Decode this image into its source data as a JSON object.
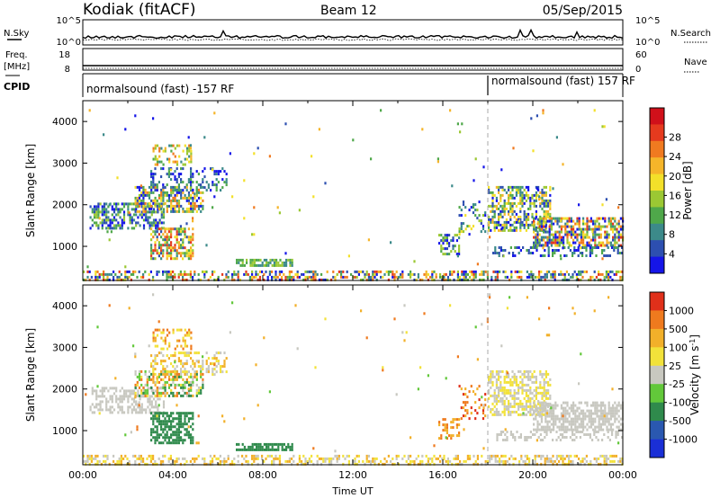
{
  "header": {
    "radar": "Kodiak (fitACF)",
    "beam": "Beam 12",
    "date": "05/Sep/2015"
  },
  "strip_panels": {
    "noise": {
      "left_label": "N.Sky",
      "right_label": "N.Search",
      "left_ticks": [
        "10^5",
        "10^0"
      ],
      "right_ticks": [
        "10^5",
        "10^0"
      ]
    },
    "freq": {
      "left_label_1": "Freq.",
      "left_label_2": "[MHz]",
      "right_label": "Nave",
      "left_ticks": [
        "18",
        "8"
      ],
      "right_ticks": [
        "60",
        "0"
      ]
    },
    "cpid": {
      "label": "CPID",
      "segments": [
        {
          "start_hour": 0,
          "text": "normalsound (fast) -157 RF"
        },
        {
          "start_hour": 18,
          "text": "normalsound (fast) 157 RF"
        }
      ]
    }
  },
  "chart_data": [
    {
      "type": "heatmap",
      "panel": "power",
      "ylabel": "Slant Range [km]",
      "xlabel": "",
      "x_range_hours": [
        0,
        24
      ],
      "y_range_km": [
        180,
        4500
      ],
      "y_ticks": [
        "1000",
        "2000",
        "3000",
        "4000"
      ],
      "colorbar_label": "Power [dB]",
      "colorbar_ticks": [
        "4",
        "8",
        "12",
        "16",
        "20",
        "24",
        "28"
      ],
      "colorbar_colors": [
        "#1515e8",
        "#2d4fb0",
        "#3c8a8a",
        "#4fa84a",
        "#9bc833",
        "#f3e02a",
        "#f5b52a",
        "#f07a20",
        "#e53a1e",
        "#d0101a"
      ],
      "scatter_regions": [
        {
          "t0": 0.3,
          "t1": 3.6,
          "r0": 1450,
          "r1": 2050,
          "density": 0.55,
          "cmin": 0,
          "cmax": 4
        },
        {
          "t0": 2.3,
          "t1": 5.3,
          "r0": 1850,
          "r1": 2450,
          "density": 0.6,
          "cmin": 0,
          "cmax": 7
        },
        {
          "t0": 3.0,
          "t1": 6.4,
          "r0": 2350,
          "r1": 2900,
          "density": 0.35,
          "cmin": 0,
          "cmax": 3
        },
        {
          "t0": 3.0,
          "t1": 4.9,
          "r0": 700,
          "r1": 1450,
          "density": 0.65,
          "cmin": 1,
          "cmax": 8
        },
        {
          "t0": 3.1,
          "t1": 4.8,
          "r0": 2950,
          "r1": 3450,
          "density": 0.35,
          "cmin": 2,
          "cmax": 7
        },
        {
          "t0": 6.8,
          "t1": 9.3,
          "r0": 530,
          "r1": 700,
          "density": 0.7,
          "cmin": 2,
          "cmax": 4
        },
        {
          "t0": 15.8,
          "t1": 16.7,
          "r0": 800,
          "r1": 1300,
          "density": 0.4,
          "cmin": 0,
          "cmax": 4
        },
        {
          "t0": 16.7,
          "t1": 17.9,
          "r0": 1300,
          "r1": 2100,
          "density": 0.25,
          "cmin": 0,
          "cmax": 5
        },
        {
          "t0": 18.0,
          "t1": 20.8,
          "r0": 1350,
          "r1": 2450,
          "density": 0.55,
          "cmin": 0,
          "cmax": 6
        },
        {
          "t0": 20.0,
          "t1": 24.0,
          "r0": 1050,
          "r1": 1700,
          "density": 0.65,
          "cmin": 0,
          "cmax": 8
        },
        {
          "t0": 18.2,
          "t1": 24.0,
          "r0": 800,
          "r1": 1000,
          "density": 0.35,
          "cmin": 0,
          "cmax": 3
        },
        {
          "t0": 0.0,
          "t1": 24.0,
          "r0": 190,
          "r1": 420,
          "density": 0.45,
          "cmin": 0,
          "cmax": 8
        },
        {
          "t0": 0.0,
          "t1": 24.0,
          "r0": 500,
          "r1": 4300,
          "density": 0.006,
          "cmin": 0,
          "cmax": 7
        }
      ]
    },
    {
      "type": "heatmap",
      "panel": "velocity",
      "ylabel": "Slant Range [km]",
      "xlabel": "Time UT",
      "x_range_hours": [
        0,
        24
      ],
      "y_range_km": [
        180,
        4500
      ],
      "y_ticks": [
        "1000",
        "2000",
        "3000",
        "4000"
      ],
      "x_ticks": [
        "00:00",
        "04:00",
        "08:00",
        "12:00",
        "16:00",
        "20:00",
        "00:00"
      ],
      "colorbar_label": "Velocity [m s^-1]",
      "colorbar_ticks": [
        "1000",
        "500",
        "100",
        "25",
        "-25",
        "-100",
        "-500",
        "-1000"
      ],
      "colorbar_colors": [
        "#1a2fd6",
        "#2a58b0",
        "#2f8a4c",
        "#62c83a",
        "#c8c8c0",
        "#f2e23a",
        "#f2b02a",
        "#ef7a1e",
        "#e0301a"
      ],
      "scatter_regions": [
        {
          "t0": 0.3,
          "t1": 3.6,
          "r0": 1450,
          "r1": 2050,
          "density": 0.5,
          "cmin": 4,
          "cmax": 4
        },
        {
          "t0": 2.3,
          "t1": 5.3,
          "r0": 1850,
          "r1": 2450,
          "density": 0.55,
          "cmin": 2,
          "cmax": 7
        },
        {
          "t0": 3.0,
          "t1": 6.4,
          "r0": 2350,
          "r1": 2900,
          "density": 0.35,
          "cmin": 4,
          "cmax": 6
        },
        {
          "t0": 3.0,
          "t1": 4.9,
          "r0": 700,
          "r1": 1450,
          "density": 0.65,
          "cmin": 2,
          "cmax": 2
        },
        {
          "t0": 3.1,
          "t1": 4.8,
          "r0": 2950,
          "r1": 3450,
          "density": 0.35,
          "cmin": 5,
          "cmax": 7
        },
        {
          "t0": 6.8,
          "t1": 9.3,
          "r0": 530,
          "r1": 700,
          "density": 0.7,
          "cmin": 2,
          "cmax": 2
        },
        {
          "t0": 15.8,
          "t1": 16.7,
          "r0": 800,
          "r1": 1300,
          "density": 0.4,
          "cmin": 6,
          "cmax": 7
        },
        {
          "t0": 16.7,
          "t1": 17.9,
          "r0": 1300,
          "r1": 2100,
          "density": 0.25,
          "cmin": 6,
          "cmax": 8
        },
        {
          "t0": 18.0,
          "t1": 20.8,
          "r0": 1350,
          "r1": 2450,
          "density": 0.55,
          "cmin": 4,
          "cmax": 5
        },
        {
          "t0": 20.0,
          "t1": 24.0,
          "r0": 1050,
          "r1": 1700,
          "density": 0.65,
          "cmin": 4,
          "cmax": 4
        },
        {
          "t0": 18.2,
          "t1": 24.0,
          "r0": 800,
          "r1": 1000,
          "density": 0.35,
          "cmin": 4,
          "cmax": 4
        },
        {
          "t0": 0.0,
          "t1": 24.0,
          "r0": 190,
          "r1": 420,
          "density": 0.45,
          "cmin": 4,
          "cmax": 6
        },
        {
          "t0": 0.0,
          "t1": 24.0,
          "r0": 500,
          "r1": 4300,
          "density": 0.006,
          "cmin": 3,
          "cmax": 7
        }
      ]
    }
  ]
}
